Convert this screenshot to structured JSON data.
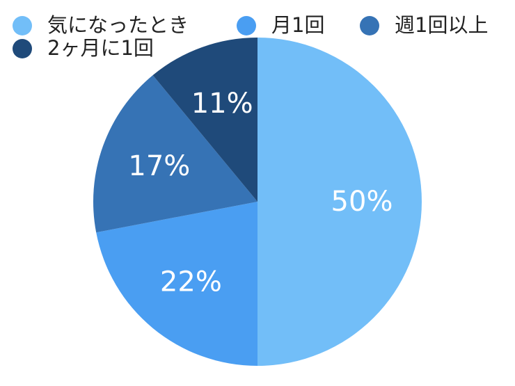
{
  "chart_data": {
    "type": "pie",
    "legend_position": "top",
    "series": [
      {
        "name": "気になったとき",
        "value": 50,
        "label": "50%",
        "color": "#72BEF8"
      },
      {
        "name": "月1回",
        "value": 22,
        "label": "22%",
        "color": "#4A9EF2"
      },
      {
        "name": "週1回以上",
        "value": 17,
        "label": "17%",
        "color": "#3673B5"
      },
      {
        "name": "2ヶ月に1回",
        "value": 11,
        "label": "11%",
        "color": "#1F4A7A"
      }
    ]
  }
}
